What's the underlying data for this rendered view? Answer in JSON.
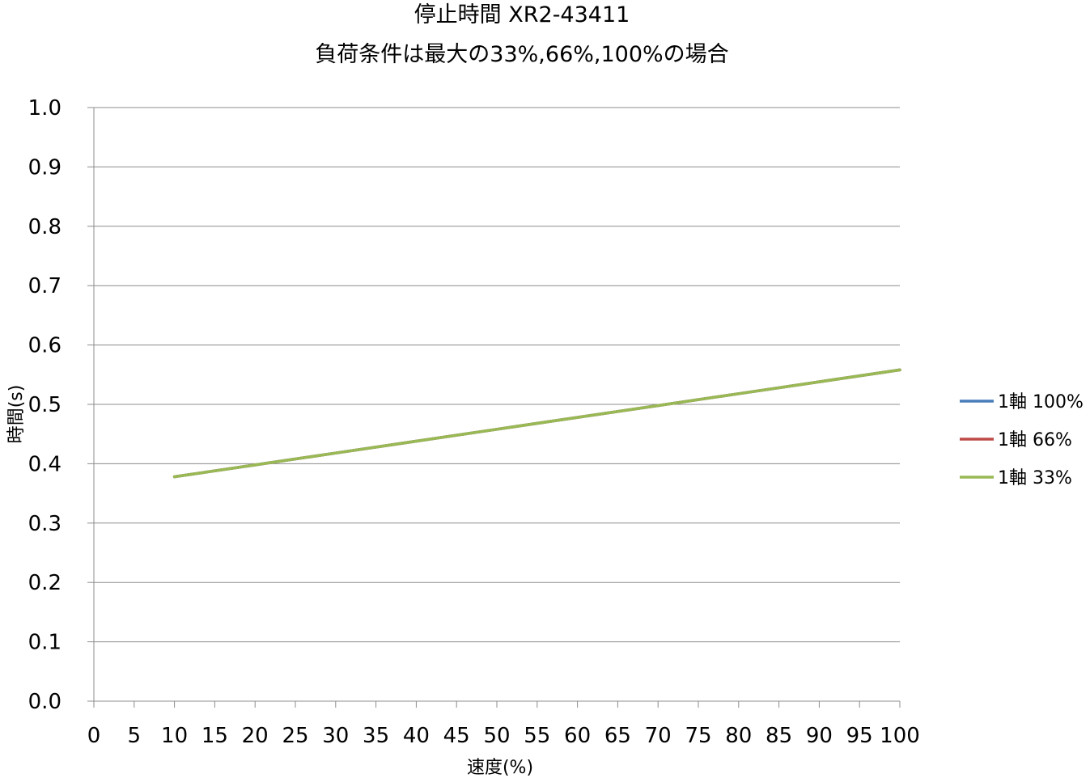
{
  "chart_data": {
    "type": "line",
    "title": "停止時間 XR2-43411",
    "subtitle": "負荷条件は最大の33%,66%,100%の場合",
    "xlabel": "速度(%)",
    "ylabel": "時間(s)",
    "xlim": [
      0,
      100
    ],
    "ylim": [
      0.0,
      1.0
    ],
    "x_ticks": [
      "0",
      "5",
      "10",
      "15",
      "20",
      "25",
      "30",
      "35",
      "40",
      "45",
      "50",
      "55",
      "60",
      "65",
      "70",
      "75",
      "80",
      "85",
      "90",
      "95",
      "100"
    ],
    "y_ticks": [
      "0.0",
      "0.1",
      "0.2",
      "0.3",
      "0.4",
      "0.5",
      "0.6",
      "0.7",
      "0.8",
      "0.9",
      "1.0"
    ],
    "grid": "horizontal",
    "legend_position": "right",
    "x": [
      10,
      20,
      30,
      40,
      50,
      60,
      70,
      80,
      90,
      100
    ],
    "series": [
      {
        "name": "1軸 100%",
        "color": "#4a7ebb",
        "values": [
          0.378,
          0.398,
          0.418,
          0.438,
          0.458,
          0.478,
          0.498,
          0.518,
          0.538,
          0.558
        ]
      },
      {
        "name": "1軸 66%",
        "color": "#be4b48",
        "values": [
          0.378,
          0.398,
          0.418,
          0.438,
          0.458,
          0.478,
          0.498,
          0.518,
          0.538,
          0.558
        ]
      },
      {
        "name": "1軸 33%",
        "color": "#98b954",
        "values": [
          0.378,
          0.398,
          0.418,
          0.438,
          0.458,
          0.478,
          0.498,
          0.518,
          0.538,
          0.558
        ]
      }
    ]
  }
}
